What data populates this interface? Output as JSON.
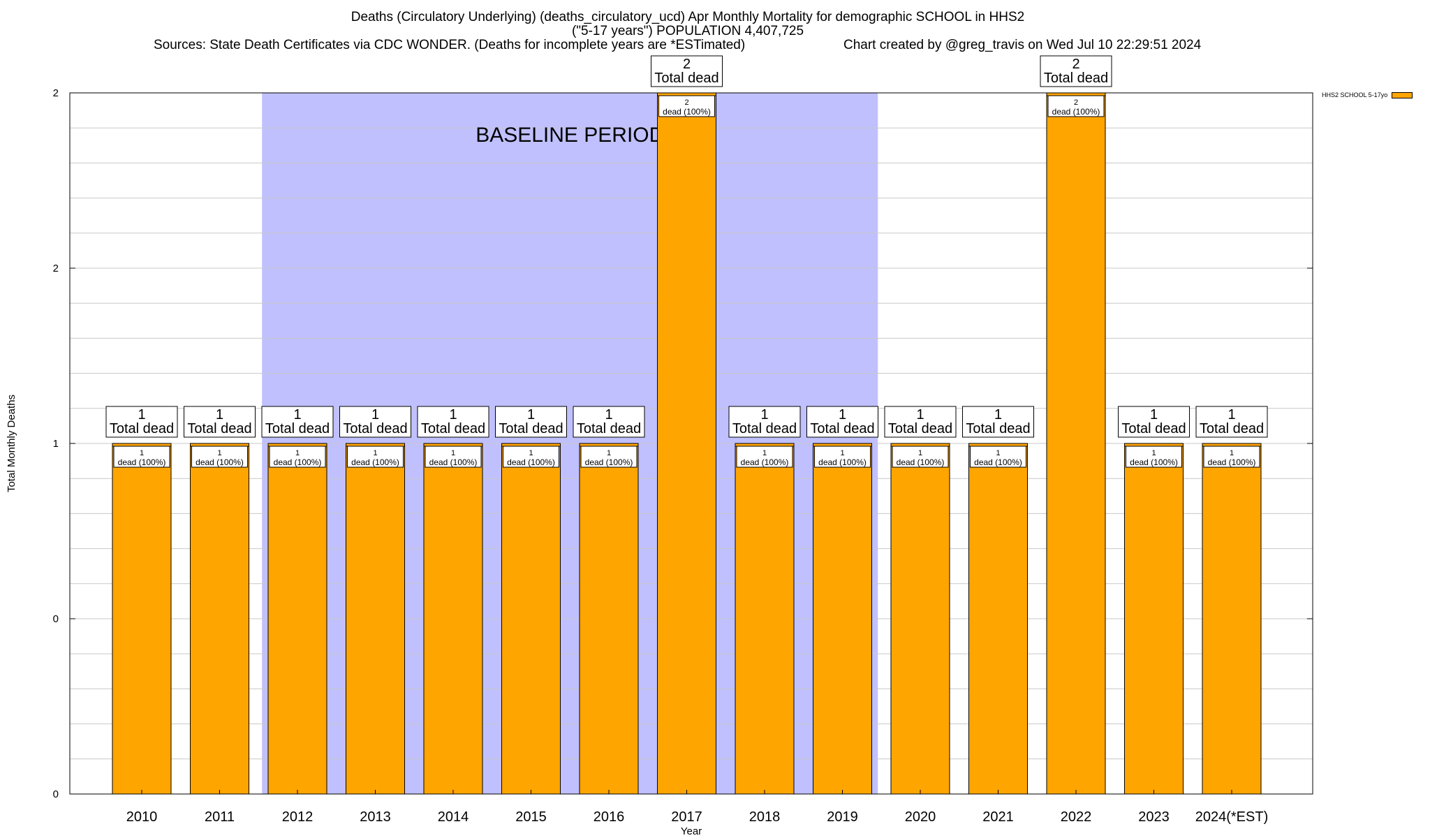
{
  "title": {
    "line1": "Deaths (Circulatory Underlying) (deaths_circulatory_ucd) Apr Monthly Mortality for demographic SCHOOL in HHS2",
    "line2": "(\"5-17 years\") POPULATION 4,407,725",
    "sources": "Sources: State Death Certificates via CDC WONDER. (Deaths for incomplete years are *ESTimated)",
    "credit": "Chart created by @greg_travis on Wed Jul 10 22:29:51 2024"
  },
  "legend": {
    "label": "HHS2 SCHOOL 5-17yo",
    "color": "#ffa500"
  },
  "chart_data": {
    "type": "bar",
    "categories": [
      "2010",
      "2011",
      "2012",
      "2013",
      "2014",
      "2015",
      "2016",
      "2017",
      "2018",
      "2019",
      "2020",
      "2021",
      "2022",
      "2023",
      "2024(*EST)"
    ],
    "series": [
      {
        "name": "HHS2 SCHOOL 5-17yo",
        "values": [
          1,
          1,
          1,
          1,
          1,
          1,
          1,
          2,
          1,
          1,
          1,
          1,
          2,
          1,
          1
        ],
        "color": "#ffa500"
      }
    ],
    "total_labels": [
      "1\nTotal dead",
      "1\nTotal dead",
      "1\nTotal dead",
      "1\nTotal dead",
      "1\nTotal dead",
      "1\nTotal dead",
      "1\nTotal dead",
      "2\nTotal dead",
      "1\nTotal dead",
      "1\nTotal dead",
      "1\nTotal dead",
      "1\nTotal dead",
      "2\nTotal dead",
      "1\nTotal dead",
      "1\nTotal dead"
    ],
    "segment_labels": [
      "1\ndead (100%)",
      "1\ndead (100%)",
      "1\ndead (100%)",
      "1\ndead (100%)",
      "1\ndead (100%)",
      "1\ndead (100%)",
      "1\ndead (100%)",
      "2\ndead (100%)",
      "1\ndead (100%)",
      "1\ndead (100%)",
      "1\ndead (100%)",
      "1\ndead (100%)",
      "2\ndead (100%)",
      "1\ndead (100%)",
      "1\ndead (100%)"
    ],
    "baseline": {
      "label": "BASELINE PERIOD",
      "from": "2012",
      "to": "2019",
      "color": "#c0c0ff"
    },
    "xlabel": "Year",
    "ylabel": "Total Monthly Deaths",
    "ylim": [
      0,
      2
    ],
    "yticks": [
      {
        "value": 0,
        "label": "0"
      },
      {
        "value": 0.5,
        "label": "0"
      },
      {
        "value": 1,
        "label": "1"
      },
      {
        "value": 1.5,
        "label": "2"
      },
      {
        "value": 2,
        "label": "2"
      }
    ],
    "grid": true,
    "legend_position": "top-right"
  }
}
